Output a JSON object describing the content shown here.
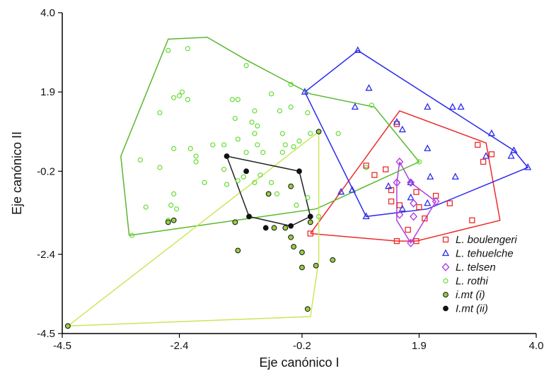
{
  "chart_data": {
    "type": "scatter",
    "xlabel": "Eje canónico I",
    "ylabel": "Eje canónico II",
    "xlim": [
      -4.5,
      4.0
    ],
    "ylim": [
      -4.5,
      4.0
    ],
    "x_ticks": [
      "-4.5",
      "-2.4",
      "-0.2",
      "1.9",
      "4.0"
    ],
    "y_ticks": [
      "4.0",
      "1.9",
      "-0.2",
      "-2.4",
      "-4.5"
    ],
    "grid": false,
    "legend_position": "bottom-right",
    "series": [
      {
        "name": "L. boulengeri",
        "marker": "square",
        "color": "#ee2a2a",
        "fill": "none",
        "hull_color": "#ee2a2a",
        "points": [
          [
            1.5,
            1.05
          ],
          [
            2.95,
            0.5
          ],
          [
            3.2,
            0.25
          ],
          [
            3.05,
            0.05
          ],
          [
            0.95,
            -0.05
          ],
          [
            1.3,
            -0.15
          ],
          [
            1.1,
            -0.3
          ],
          [
            1.4,
            -0.7
          ],
          [
            1.85,
            -0.75
          ],
          [
            2.2,
            -0.85
          ],
          [
            1.4,
            -1.0
          ],
          [
            1.55,
            -1.1
          ],
          [
            1.9,
            -1.15
          ],
          [
            2.45,
            -1.05
          ],
          [
            2.0,
            -1.45
          ],
          [
            2.85,
            -1.5
          ],
          [
            1.7,
            -1.75
          ],
          [
            -0.05,
            -1.85
          ],
          [
            1.5,
            -2.05
          ],
          [
            1.85,
            -2.05
          ]
        ],
        "hull": [
          [
            -0.05,
            -1.85
          ],
          [
            1.5,
            -2.05
          ],
          [
            1.85,
            -2.05
          ],
          [
            3.35,
            -1.5
          ],
          [
            3.1,
            0.55
          ],
          [
            1.55,
            1.4
          ],
          [
            -0.05,
            -1.85
          ]
        ]
      },
      {
        "name": "L. tehuelche",
        "marker": "triangle",
        "color": "#2a2aee",
        "fill": "none",
        "hull_color": "#2a2aee",
        "points": [
          [
            0.8,
            3.0
          ],
          [
            1.0,
            2.0
          ],
          [
            -0.15,
            1.9
          ],
          [
            0.75,
            1.5
          ],
          [
            1.5,
            1.1
          ],
          [
            2.05,
            1.5
          ],
          [
            2.5,
            1.5
          ],
          [
            2.65,
            1.5
          ],
          [
            1.6,
            0.9
          ],
          [
            2.05,
            0.4
          ],
          [
            3.2,
            0.8
          ],
          [
            3.6,
            0.35
          ],
          [
            3.55,
            0.2
          ],
          [
            3.1,
            0.2
          ],
          [
            3.85,
            -0.1
          ],
          [
            2.1,
            -0.35
          ],
          [
            2.55,
            -0.35
          ],
          [
            1.75,
            -0.5
          ],
          [
            1.35,
            -0.6
          ],
          [
            0.5,
            -0.75
          ],
          [
            0.7,
            -0.7
          ],
          [
            1.75,
            -0.9
          ],
          [
            2.05,
            -1.05
          ],
          [
            1.6,
            -1.2
          ],
          [
            0.95,
            -1.4
          ]
        ],
        "hull": [
          [
            -0.15,
            1.9
          ],
          [
            0.8,
            3.0
          ],
          [
            3.6,
            0.35
          ],
          [
            3.85,
            -0.1
          ],
          [
            2.05,
            -1.2
          ],
          [
            0.95,
            -1.4
          ],
          [
            -0.15,
            1.9
          ]
        ]
      },
      {
        "name": "L. telsen",
        "marker": "diamond",
        "color": "#b040e0",
        "fill": "none",
        "hull_color": "#b040e0",
        "points": [
          [
            1.55,
            0.05
          ],
          [
            1.5,
            -0.5
          ],
          [
            1.75,
            -0.5
          ],
          [
            1.8,
            -1.05
          ],
          [
            2.2,
            -1.0
          ],
          [
            1.55,
            -1.35
          ],
          [
            1.8,
            -1.4
          ],
          [
            1.75,
            -2.1
          ]
        ],
        "hull": [
          [
            1.55,
            0.05
          ],
          [
            1.75,
            -0.5
          ],
          [
            2.2,
            -1.0
          ],
          [
            1.75,
            -2.1
          ],
          [
            1.5,
            -1.5
          ],
          [
            1.5,
            -0.5
          ],
          [
            1.55,
            0.05
          ]
        ]
      },
      {
        "name": "L. rothi",
        "marker": "circle",
        "color": "#66dd33",
        "fill": "none",
        "hull_color": "#58b82e",
        "points": [
          [
            -2.6,
            3.0
          ],
          [
            -2.25,
            3.05
          ],
          [
            -1.2,
            2.6
          ],
          [
            -2.75,
            1.35
          ],
          [
            -2.4,
            1.8
          ],
          [
            -2.35,
            1.9
          ],
          [
            -2.25,
            1.7
          ],
          [
            -2.5,
            1.75
          ],
          [
            -1.35,
            1.7
          ],
          [
            -1.45,
            1.7
          ],
          [
            -1.05,
            1.4
          ],
          [
            -0.6,
            1.4
          ],
          [
            -0.4,
            2.1
          ],
          [
            -0.75,
            1.85
          ],
          [
            -0.4,
            1.5
          ],
          [
            -1.4,
            1.2
          ],
          [
            -1.1,
            1.1
          ],
          [
            -1.0,
            1.0
          ],
          [
            -1.05,
            0.8
          ],
          [
            -0.55,
            0.8
          ],
          [
            -0.5,
            0.5
          ],
          [
            -1.0,
            0.5
          ],
          [
            -0.25,
            0.6
          ],
          [
            -0.55,
            0.3
          ],
          [
            -0.35,
            0.45
          ],
          [
            -0.9,
            0.3
          ],
          [
            -1.2,
            0.3
          ],
          [
            -1.35,
            0.65
          ],
          [
            -1.6,
            0.5
          ],
          [
            -1.8,
            0.5
          ],
          [
            -2.2,
            0.4
          ],
          [
            -2.1,
            0.2
          ],
          [
            -2.1,
            0.05
          ],
          [
            -2.5,
            0.4
          ],
          [
            -2.75,
            -0.1
          ],
          [
            -0.95,
            -0.3
          ],
          [
            -1.35,
            -0.45
          ],
          [
            -1.55,
            -0.55
          ],
          [
            -1.95,
            -0.5
          ],
          [
            -1.6,
            -0.15
          ],
          [
            -1.25,
            -0.35
          ],
          [
            -1.05,
            -0.5
          ],
          [
            -0.75,
            -0.5
          ],
          [
            -0.65,
            -0.8
          ],
          [
            -0.4,
            -0.6
          ],
          [
            -0.3,
            -1.1
          ],
          [
            -0.1,
            -0.9
          ],
          [
            -2.5,
            -0.8
          ],
          [
            -3.0,
            -1.15
          ],
          [
            -3.1,
            0.1
          ],
          [
            -2.6,
            -1.5
          ],
          [
            -2.45,
            -1.2
          ],
          [
            -2.55,
            -1.1
          ],
          [
            -0.05,
            0.8
          ],
          [
            0.95,
            -0.1
          ],
          [
            -0.1,
            1.35
          ],
          [
            1.9,
            0.05
          ],
          [
            -3.25,
            -1.9
          ],
          [
            0.1,
            -1.4
          ],
          [
            0.45,
            0.8
          ],
          [
            1.05,
            1.55
          ]
        ],
        "hull": [
          [
            -3.3,
            -1.9
          ],
          [
            -3.45,
            0.2
          ],
          [
            -2.6,
            3.3
          ],
          [
            -1.9,
            3.35
          ],
          [
            -1.2,
            2.75
          ],
          [
            -0.05,
            1.85
          ],
          [
            1.1,
            1.5
          ],
          [
            1.9,
            0.05
          ],
          [
            0.05,
            -1.2
          ],
          [
            -3.3,
            -1.9
          ]
        ]
      },
      {
        "name": "i.mt (i)",
        "marker": "circle-filled",
        "color": "#111111",
        "fill": "#99cc44",
        "hull_color": "#c8e85a",
        "points": [
          [
            -4.4,
            -4.3
          ],
          [
            -2.5,
            -1.5
          ],
          [
            -2.6,
            -1.55
          ],
          [
            -1.4,
            -1.55
          ],
          [
            -0.4,
            -0.6
          ],
          [
            -0.4,
            -1.95
          ],
          [
            -0.5,
            -1.7
          ],
          [
            -0.35,
            -2.2
          ],
          [
            -1.35,
            -2.3
          ],
          [
            -0.8,
            -0.8
          ],
          [
            -0.7,
            -1.7
          ],
          [
            -0.2,
            -2.35
          ],
          [
            -0.1,
            -3.85
          ],
          [
            -0.05,
            -1.55
          ],
          [
            0.05,
            -2.7
          ],
          [
            0.1,
            0.85
          ],
          [
            0.35,
            -2.55
          ],
          [
            -0.2,
            -2.75
          ]
        ],
        "hull": [
          [
            -4.4,
            -4.3
          ],
          [
            -0.05,
            -4.05
          ],
          [
            0.1,
            -2.55
          ],
          [
            0.1,
            0.85
          ],
          [
            -4.4,
            -4.3
          ]
        ]
      },
      {
        "name": "I.mt (ii)",
        "marker": "circle-filled",
        "color": "#111111",
        "fill": "#111111",
        "hull_color": "#222222",
        "points": [
          [
            -1.55,
            0.2
          ],
          [
            -1.2,
            -0.2
          ],
          [
            -1.15,
            -1.4
          ],
          [
            -0.85,
            -1.7
          ],
          [
            -0.4,
            -1.65
          ],
          [
            -0.25,
            -0.2
          ],
          [
            -0.05,
            -1.4
          ]
        ],
        "hull": [
          [
            -1.55,
            0.2
          ],
          [
            -1.15,
            -1.4
          ],
          [
            -0.4,
            -1.65
          ],
          [
            -0.05,
            -1.4
          ],
          [
            -0.25,
            -0.2
          ],
          [
            -1.55,
            0.2
          ]
        ]
      }
    ]
  }
}
